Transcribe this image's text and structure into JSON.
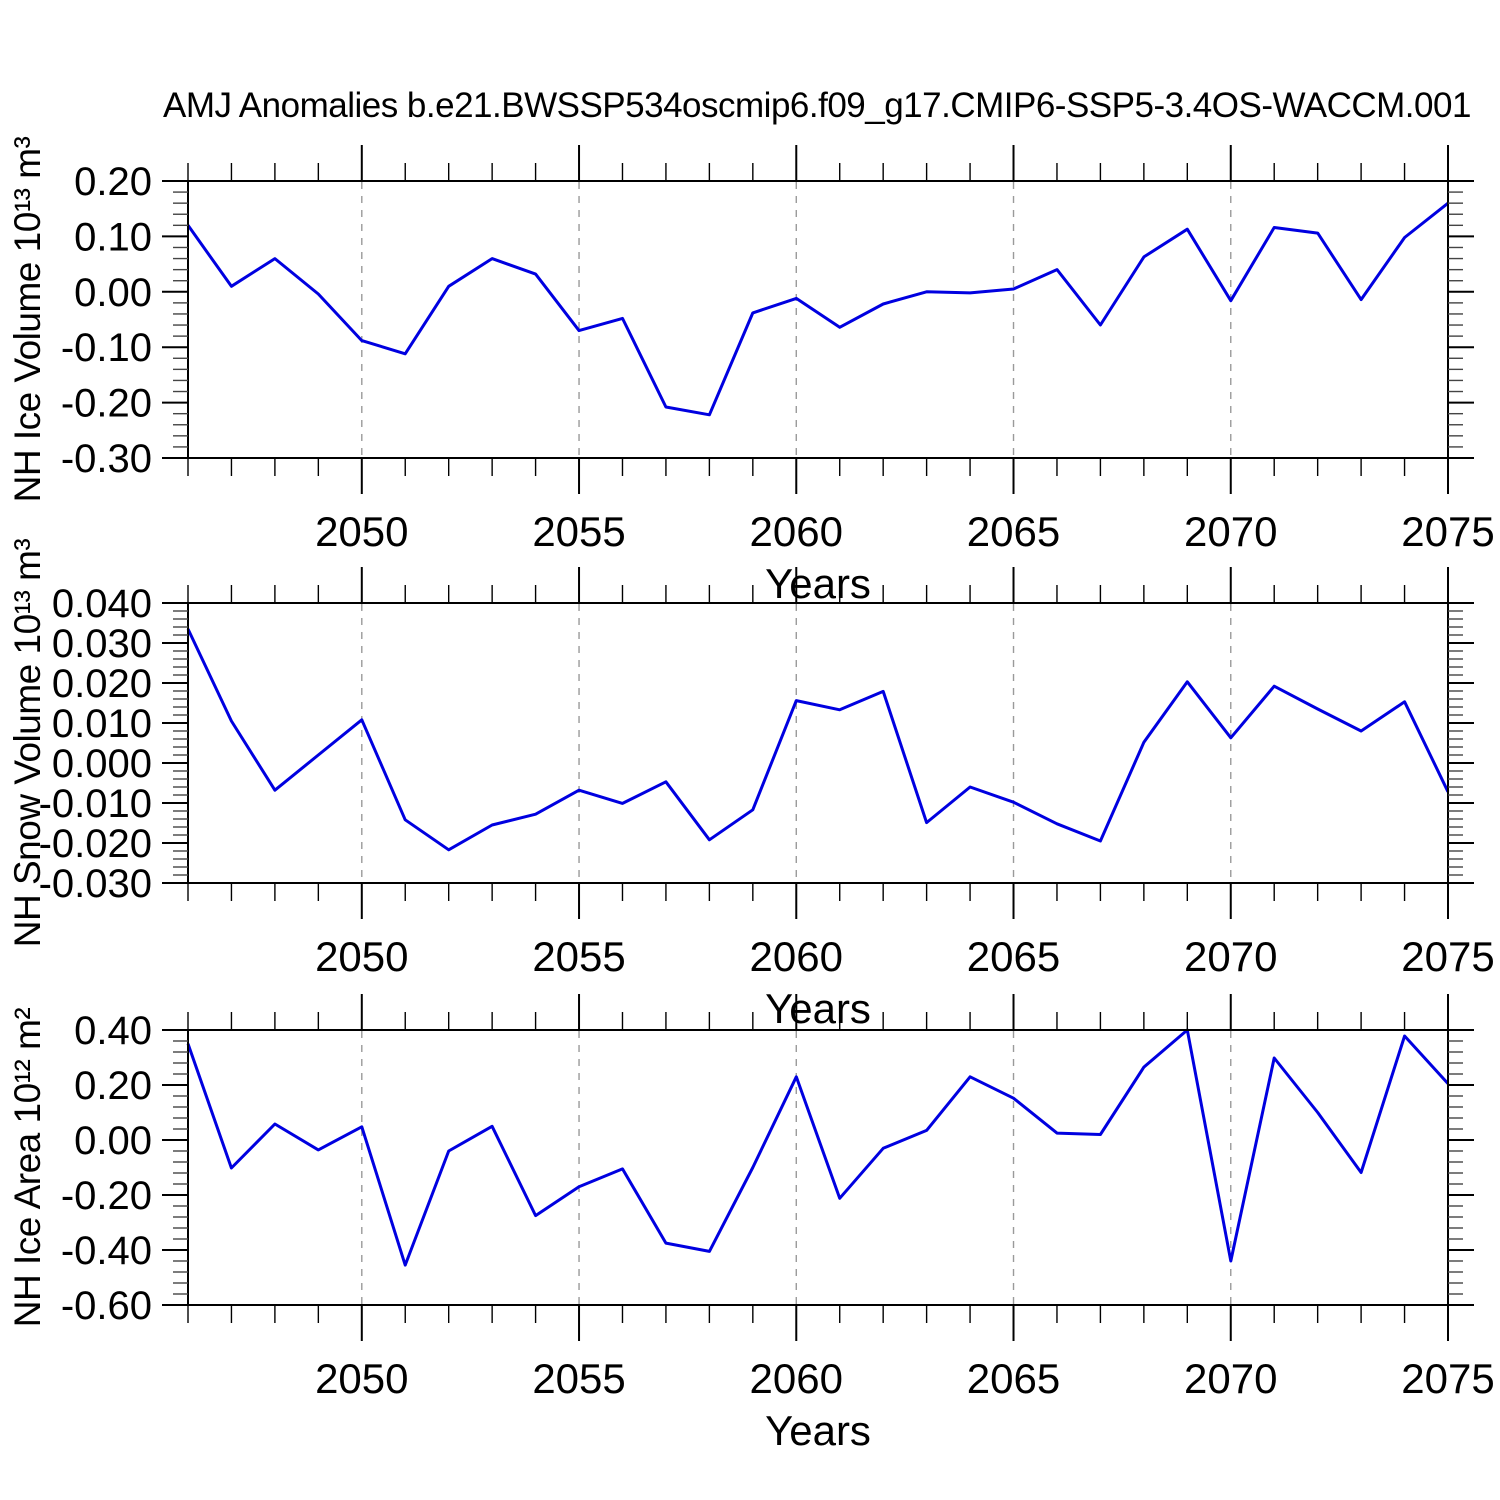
{
  "title": "AMJ Anomalies b.e21.BWSSP534oscmip6.f09_g17.CMIP6-SSP5-3.4OS-WACCM.001",
  "xlabel": "Years",
  "style": {
    "line_color": "#0000e0",
    "grid_color": "#9a9a9a",
    "axis_color": "#000000",
    "background": "#ffffff"
  },
  "chart_data": [
    {
      "type": "line",
      "id": "nh-ice-volume",
      "ylabel": "NH Ice Volume 10¹³ m³",
      "xlabel": "Years",
      "legend": "none",
      "grid": "vertical-dashed",
      "x": [
        2046,
        2047,
        2048,
        2049,
        2050,
        2051,
        2052,
        2053,
        2054,
        2055,
        2056,
        2057,
        2058,
        2059,
        2060,
        2061,
        2062,
        2063,
        2064,
        2065,
        2066,
        2067,
        2068,
        2069,
        2070,
        2071,
        2072,
        2073,
        2074,
        2075
      ],
      "values": [
        0.12,
        0.01,
        0.06,
        -0.004,
        -0.088,
        -0.112,
        0.01,
        0.06,
        0.032,
        -0.07,
        -0.048,
        -0.208,
        -0.222,
        -0.038,
        -0.012,
        -0.064,
        -0.022,
        0.0,
        -0.002,
        0.005,
        0.04,
        -0.06,
        0.063,
        0.113,
        -0.016,
        0.116,
        0.106,
        -0.014,
        0.098,
        0.16
      ],
      "ylim": [
        -0.3,
        0.2
      ],
      "ymajor": 0.1,
      "yminor": 0.02,
      "ytick_labels": [
        "0.20",
        "0.10",
        "0.00",
        "-0.10",
        "-0.20",
        "-0.30"
      ],
      "xticks": [
        2050,
        2055,
        2060,
        2065,
        2070,
        2075
      ]
    },
    {
      "type": "line",
      "id": "nh-snow-volume",
      "ylabel": "NH Snow Volume 10¹³ m³",
      "xlabel": "Years",
      "legend": "none",
      "grid": "vertical-dashed",
      "x": [
        2046,
        2047,
        2048,
        2049,
        2050,
        2051,
        2052,
        2053,
        2054,
        2055,
        2056,
        2057,
        2058,
        2059,
        2060,
        2061,
        2062,
        2063,
        2064,
        2065,
        2066,
        2067,
        2068,
        2069,
        2070,
        2071,
        2072,
        2073,
        2074,
        2075
      ],
      "values": [
        0.0335,
        0.0105,
        -0.0068,
        0.002,
        0.0108,
        -0.0142,
        -0.0217,
        -0.0155,
        -0.0128,
        -0.0068,
        -0.0101,
        -0.0047,
        -0.0192,
        -0.0117,
        0.0156,
        0.0133,
        0.0179,
        -0.0149,
        -0.006,
        -0.0098,
        -0.0152,
        -0.0195,
        0.0052,
        0.0203,
        0.0063,
        0.0192,
        0.0135,
        0.008,
        0.0153,
        -0.0072
      ],
      "ylim": [
        -0.03,
        0.04
      ],
      "ymajor": 0.01,
      "yminor": 0.002,
      "ytick_labels": [
        "0.040",
        "0.030",
        "0.020",
        "0.010",
        "0.000",
        "-0.010",
        "-0.020",
        "-0.030"
      ],
      "xticks": [
        2050,
        2055,
        2060,
        2065,
        2070,
        2075
      ]
    },
    {
      "type": "line",
      "id": "nh-ice-area",
      "ylabel": "NH Ice Area 10¹² m²",
      "xlabel": "Years",
      "legend": "none",
      "grid": "vertical-dashed",
      "x": [
        2046,
        2047,
        2048,
        2049,
        2050,
        2051,
        2052,
        2053,
        2054,
        2055,
        2056,
        2057,
        2058,
        2059,
        2060,
        2061,
        2062,
        2063,
        2064,
        2065,
        2066,
        2067,
        2068,
        2069,
        2070,
        2071,
        2072,
        2073,
        2074,
        2075
      ],
      "values": [
        0.35,
        -0.102,
        0.058,
        -0.036,
        0.048,
        -0.455,
        -0.04,
        0.05,
        -0.275,
        -0.17,
        -0.105,
        -0.375,
        -0.405,
        -0.1,
        0.23,
        -0.212,
        -0.03,
        0.035,
        0.23,
        0.152,
        0.025,
        0.02,
        0.265,
        0.4,
        -0.44,
        0.298,
        0.1,
        -0.118,
        0.378,
        0.205
      ],
      "ylim": [
        -0.6,
        0.4
      ],
      "ymajor": 0.2,
      "yminor": 0.04,
      "ytick_labels": [
        "0.40",
        "0.20",
        "0.00",
        "-0.20",
        "-0.40",
        "-0.60"
      ],
      "xticks": [
        2050,
        2055,
        2060,
        2065,
        2070,
        2075
      ]
    }
  ]
}
